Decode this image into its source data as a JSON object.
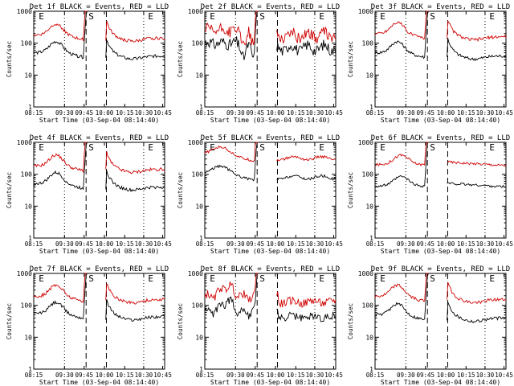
{
  "chart_data": [
    {
      "type": "line",
      "title": "Det 1f BLACK = Events, RED = LLD",
      "xlabel": "Start Time (03-Sep-04 08:14:40)",
      "ylabel": "Counts/sec",
      "yscale": "log",
      "ylim": [
        1,
        1000
      ],
      "x_ticks": [
        "08:15",
        "09:30",
        "09:45",
        "10:00",
        "10:15",
        "10:30",
        "10:45"
      ],
      "y_ticks": [
        "1",
        "10",
        "100",
        "1000"
      ],
      "markers": [
        "E",
        "S",
        "E"
      ],
      "series": [
        {
          "name": "Events",
          "color": "#000000",
          "shape": "p1",
          "level": 50
        },
        {
          "name": "LLD",
          "color": "#d00000",
          "shape": "p1",
          "level": 180
        }
      ]
    },
    {
      "type": "line",
      "title": "Det 2f BLACK = Events, RED = LLD",
      "xlabel": "Start Time (03-Sep-04 08:14:40)",
      "ylabel": "Counts/sec",
      "yscale": "log",
      "ylim": [
        1,
        1000
      ],
      "x_ticks": [
        "08:15",
        "09:30",
        "09:45",
        "10:00",
        "10:15",
        "10:30",
        "10:45"
      ],
      "y_ticks": [
        "1",
        "10",
        "100",
        "1000"
      ],
      "markers": [
        "E",
        "S",
        "E"
      ],
      "series": [
        {
          "name": "Events",
          "color": "#000000",
          "shape": "p2",
          "level": 100
        },
        {
          "name": "LLD",
          "color": "#d00000",
          "shape": "p2",
          "level": 250
        }
      ]
    },
    {
      "type": "line",
      "title": "Det 3f BLACK = Events, RED = LLD",
      "xlabel": "Start Time (03-Sep-04 08:14:40)",
      "ylabel": "Counts/sec",
      "yscale": "log",
      "ylim": [
        1,
        1000
      ],
      "x_ticks": [
        "08:15",
        "09:30",
        "09:45",
        "10:00",
        "10:15",
        "10:30",
        "10:45"
      ],
      "y_ticks": [
        "1",
        "10",
        "100",
        "1000"
      ],
      "markers": [
        "E",
        "S",
        "E"
      ],
      "series": [
        {
          "name": "Events",
          "color": "#000000",
          "shape": "p1",
          "level": 50
        },
        {
          "name": "LLD",
          "color": "#d00000",
          "shape": "p1",
          "level": 200
        }
      ]
    },
    {
      "type": "line",
      "title": "Det 4f BLACK = Events, RED = LLD",
      "xlabel": "Start Time (03-Sep-04 08:14:40)",
      "ylabel": "Counts/sec",
      "yscale": "log",
      "ylim": [
        1,
        1000
      ],
      "x_ticks": [
        "08:15",
        "09:30",
        "09:45",
        "10:00",
        "10:15",
        "10:30",
        "10:45"
      ],
      "y_ticks": [
        "1",
        "10",
        "100",
        "1000"
      ],
      "markers": [
        "E",
        "S",
        "E"
      ],
      "series": [
        {
          "name": "Events",
          "color": "#000000",
          "shape": "p1",
          "level": 50
        },
        {
          "name": "LLD",
          "color": "#d00000",
          "shape": "p1",
          "level": 180
        }
      ]
    },
    {
      "type": "line",
      "title": "Det 5f BLACK = Events, RED = LLD",
      "xlabel": "Start Time (03-Sep-04 08:14:40)",
      "ylabel": "Counts/sec",
      "yscale": "log",
      "ylim": [
        1,
        1000
      ],
      "x_ticks": [
        "08:15",
        "09:30",
        "09:45",
        "10:00",
        "10:15",
        "10:30",
        "10:45"
      ],
      "y_ticks": [
        "1",
        "10",
        "100",
        "1000"
      ],
      "markers": [
        "E",
        "S",
        "E"
      ],
      "series": [
        {
          "name": "Events",
          "color": "#000000",
          "shape": "p5",
          "level": 100
        },
        {
          "name": "LLD",
          "color": "#d00000",
          "shape": "p5",
          "level": 400
        }
      ]
    },
    {
      "type": "line",
      "title": "Det 6f BLACK = Events, RED = LLD",
      "xlabel": "Start Time (03-Sep-04 08:14:40)",
      "ylabel": "Counts/sec",
      "yscale": "log",
      "ylim": [
        1,
        1000
      ],
      "x_ticks": [
        "08:15",
        "09:30",
        "09:45",
        "10:00",
        "10:15",
        "10:30",
        "10:45"
      ],
      "y_ticks": [
        "1",
        "10",
        "100",
        "1000"
      ],
      "markers": [
        "E",
        "S",
        "E"
      ],
      "series": [
        {
          "name": "Events",
          "color": "#000000",
          "shape": "p6",
          "level": 60
        },
        {
          "name": "LLD",
          "color": "#d00000",
          "shape": "p6",
          "level": 280
        }
      ]
    },
    {
      "type": "line",
      "title": "Det 7f BLACK = Events, RED = LLD",
      "xlabel": "Start Time (03-Sep-04 08:14:40)",
      "ylabel": "Counts/sec",
      "yscale": "log",
      "ylim": [
        1,
        1000
      ],
      "x_ticks": [
        "08:15",
        "09:30",
        "09:45",
        "10:00",
        "10:15",
        "10:30",
        "10:45"
      ],
      "y_ticks": [
        "1",
        "10",
        "100",
        "1000"
      ],
      "markers": [
        "E",
        "S",
        "E"
      ],
      "series": [
        {
          "name": "Events",
          "color": "#000000",
          "shape": "p1",
          "level": 55
        },
        {
          "name": "LLD",
          "color": "#d00000",
          "shape": "p1",
          "level": 190
        }
      ]
    },
    {
      "type": "line",
      "title": "Det 8f BLACK = Events, RED = LLD",
      "xlabel": "Start Time (03-Sep-04 08:14:40)",
      "ylabel": "Counts/sec",
      "yscale": "log",
      "ylim": [
        1,
        1000
      ],
      "x_ticks": [
        "08:15",
        "09:30",
        "09:45",
        "10:00",
        "10:15",
        "10:30",
        "10:45"
      ],
      "y_ticks": [
        "1",
        "10",
        "100",
        "1000"
      ],
      "markers": [
        "E",
        "S",
        "E"
      ],
      "series": [
        {
          "name": "Events",
          "color": "#000000",
          "shape": "p8",
          "level": 60
        },
        {
          "name": "LLD",
          "color": "#d00000",
          "shape": "p8",
          "level": 180
        }
      ]
    },
    {
      "type": "line",
      "title": "Det 9f BLACK = Events, RED = LLD",
      "xlabel": "Start Time (03-Sep-04 08:14:40)",
      "ylabel": "Counts/sec",
      "yscale": "log",
      "ylim": [
        1,
        1000
      ],
      "x_ticks": [
        "08:15",
        "09:30",
        "09:45",
        "10:00",
        "10:15",
        "10:30",
        "10:45"
      ],
      "y_ticks": [
        "1",
        "10",
        "100",
        "1000"
      ],
      "markers": [
        "E",
        "S",
        "E"
      ],
      "series": [
        {
          "name": "Events",
          "color": "#000000",
          "shape": "p1",
          "level": 50
        },
        {
          "name": "LLD",
          "color": "#d00000",
          "shape": "p1",
          "level": 190
        }
      ]
    }
  ]
}
